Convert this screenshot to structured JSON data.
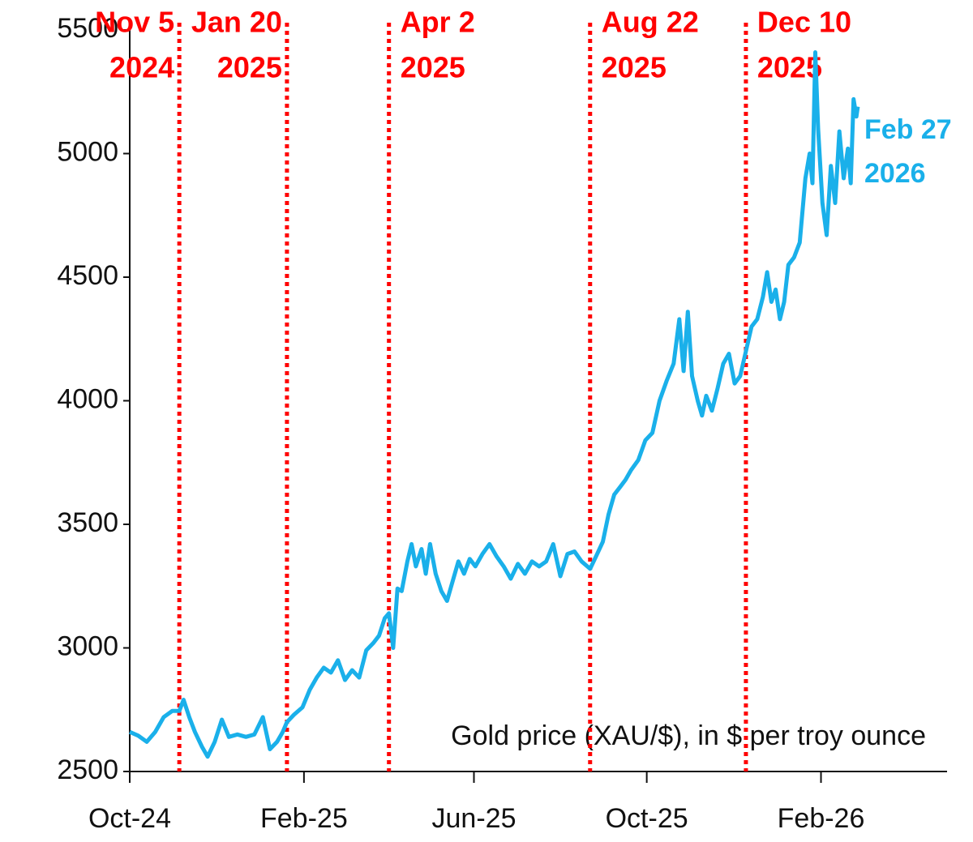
{
  "chart_data": {
    "type": "line",
    "note": "Gold price (XAU/$), in $ per troy ounce",
    "x": [
      45566,
      45572,
      45578,
      45584,
      45590,
      45596,
      45601,
      45604,
      45608,
      45612,
      45617,
      45621,
      45626,
      45631,
      45636,
      45642,
      45648,
      45654,
      45660,
      45665,
      45670,
      45674,
      45677,
      45682,
      45688,
      45693,
      45698,
      45703,
      45708,
      45713,
      45718,
      45723,
      45728,
      45733,
      45738,
      45742,
      45746,
      45749,
      45752,
      45755,
      45758,
      45762,
      45765,
      45768,
      45772,
      45775,
      45778,
      45782,
      45786,
      45790,
      45794,
      45798,
      45802,
      45806,
      45810,
      45815,
      45820,
      45825,
      45830,
      45835,
      45840,
      45845,
      45850,
      45855,
      45860,
      45865,
      45870,
      45875,
      45880,
      45885,
      45891,
      45896,
      45900,
      45904,
      45908,
      45912,
      45916,
      45920,
      45925,
      45930,
      45935,
      45940,
      45945,
      45950,
      45954,
      45957,
      45960,
      45963,
      45967,
      45970,
      45973,
      45977,
      45981,
      45985,
      45989,
      45993,
      45997,
      46001,
      46005,
      46009,
      46013,
      46016,
      46019,
      46022,
      46025,
      46028,
      46031,
      46035,
      46039,
      46043,
      46046,
      46048,
      46050,
      46052,
      46055,
      46058,
      46061,
      46064,
      46067,
      46070,
      46073,
      46075,
      46077,
      46079,
      46080
    ],
    "series": [
      {
        "name": "Gold price",
        "color": "#1ab0ea",
        "values": [
          2660,
          2645,
          2620,
          2660,
          2720,
          2745,
          2745,
          2790,
          2720,
          2660,
          2600,
          2560,
          2620,
          2710,
          2640,
          2650,
          2640,
          2650,
          2720,
          2590,
          2620,
          2660,
          2700,
          2730,
          2760,
          2830,
          2880,
          2920,
          2900,
          2950,
          2870,
          2910,
          2880,
          2990,
          3020,
          3050,
          3120,
          3140,
          3000,
          3240,
          3230,
          3350,
          3420,
          3330,
          3400,
          3300,
          3420,
          3300,
          3230,
          3190,
          3270,
          3350,
          3300,
          3360,
          3330,
          3380,
          3420,
          3370,
          3330,
          3280,
          3340,
          3300,
          3350,
          3330,
          3350,
          3420,
          3290,
          3380,
          3390,
          3350,
          3320,
          3380,
          3430,
          3540,
          3620,
          3650,
          3680,
          3720,
          3760,
          3840,
          3870,
          4000,
          4080,
          4150,
          4330,
          4120,
          4360,
          4100,
          4000,
          3940,
          4020,
          3960,
          4050,
          4150,
          4190,
          4070,
          4100,
          4200,
          4300,
          4330,
          4420,
          4520,
          4400,
          4450,
          4330,
          4400,
          4550,
          4580,
          4640,
          4900,
          5000,
          4880,
          5410,
          5100,
          4800,
          4670,
          4950,
          4800,
          5090,
          4900,
          5020,
          4880,
          5220,
          5150,
          5190
        ]
      }
    ],
    "end_label": [
      "Feb 27",
      "2026"
    ],
    "events": [
      {
        "x": 45601,
        "label": [
          "Nov 5",
          "2024"
        ]
      },
      {
        "x": 45677,
        "label": [
          "Jan 20",
          "2025"
        ]
      },
      {
        "x": 45749,
        "label": [
          "Apr 2",
          "2025"
        ]
      },
      {
        "x": 45891,
        "label": [
          "Aug 22",
          "2025"
        ]
      },
      {
        "x": 46001,
        "label": [
          "Dec 10",
          "2025"
        ]
      }
    ],
    "event_color": "#ff0000",
    "xlim": [
      45566,
      46143
    ],
    "xticks": [
      {
        "value": 45566,
        "label": "Oct-24"
      },
      {
        "value": 45689,
        "label": "Feb-25"
      },
      {
        "value": 45809,
        "label": "Jun-25"
      },
      {
        "value": 45931,
        "label": "Oct-25"
      },
      {
        "value": 46054,
        "label": "Feb-26"
      }
    ],
    "ylim": [
      2500,
      5500
    ],
    "yticks": [
      2500,
      3000,
      3500,
      4000,
      4500,
      5000,
      5500
    ]
  }
}
